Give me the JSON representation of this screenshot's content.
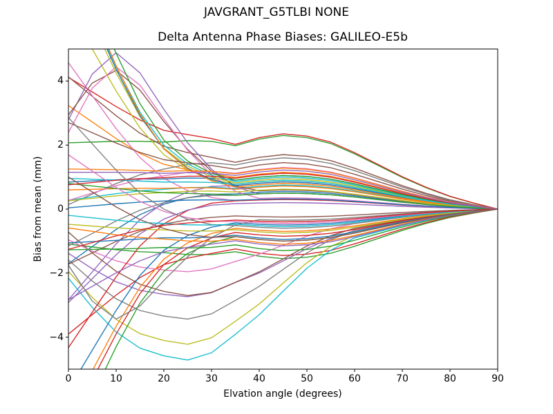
{
  "figure": {
    "suptitle": "JAVGRANT_G5TLBI NONE",
    "background": "#ffffff"
  },
  "chart_data": {
    "type": "line",
    "title": "JAVGRANT_G5TLBI NONE",
    "subtitle": "Delta Antenna Phase Biases: GALILEO-E5b",
    "xlabel": "Elvation angle (degrees)",
    "ylabel": "Bias from mean (mm)",
    "xlim": [
      0,
      90
    ],
    "ylim": [
      -5,
      5
    ],
    "x_ticks": [
      0,
      10,
      20,
      30,
      40,
      50,
      60,
      70,
      80,
      90
    ],
    "x_tick_labels": [
      "0",
      "10",
      "20",
      "30",
      "40",
      "50",
      "60",
      "70",
      "80",
      "90"
    ],
    "y_ticks": [
      -4,
      -2,
      0,
      2,
      4
    ],
    "y_tick_labels": [
      "−4",
      "−2",
      "0",
      "2",
      "4"
    ],
    "grid": false,
    "legend": "none",
    "axis_color": "#000000",
    "line_width": 1.4,
    "palette": [
      "#1f77b4",
      "#ff7f0e",
      "#2ca02c",
      "#d62728",
      "#9467bd",
      "#8c564b",
      "#e377c2",
      "#7f7f7f",
      "#bcbd22",
      "#17becf"
    ],
    "x": [
      0,
      5,
      10,
      15,
      20,
      25,
      30,
      35,
      40,
      45,
      50,
      55,
      60,
      65,
      70,
      75,
      80,
      85,
      90
    ],
    "model": "Each series (antenna/channel bias curve, mm) sampled at x degrees: y = A*funnel_h + S*left_divergence_d + V*dip25_v + P*bump10_p. All series converge to 0 mm at 90 deg; hump/dip near 45 deg; chaotic fan-out toward 0 deg.",
    "basis": {
      "funnel_h": [
        0.9,
        0.91,
        0.92,
        0.92,
        0.91,
        0.93,
        0.92,
        0.86,
        0.95,
        1.0,
        0.97,
        0.89,
        0.75,
        0.59,
        0.43,
        0.29,
        0.17,
        0.08,
        0.0
      ],
      "left_divergence_d": [
        1.0,
        0.76,
        0.52,
        0.31,
        0.16,
        0.07,
        0.02,
        0.0,
        0,
        0,
        0,
        0,
        0,
        0,
        0,
        0,
        0,
        0,
        0
      ],
      "dip25_v": [
        0.3,
        0.55,
        0.76,
        0.9,
        0.97,
        1.0,
        0.94,
        0.8,
        0.6,
        0.38,
        0.19,
        0.06,
        0.0,
        0,
        0,
        0,
        0,
        0,
        0
      ],
      "bump10_p": [
        0.3,
        0.75,
        1.0,
        0.9,
        0.65,
        0.4,
        0.2,
        0.07,
        0.0,
        0,
        0,
        0,
        0,
        0,
        0,
        0,
        0,
        0,
        0
      ]
    },
    "series": [
      {
        "c": 0,
        "A": 0.55,
        "S": -2.2
      },
      {
        "c": 1,
        "A": 1.15,
        "S": 2.2
      },
      {
        "c": 2,
        "A": 2.3,
        "S": 0
      },
      {
        "c": 3,
        "A": 2.35,
        "S": 2.0
      },
      {
        "c": 4,
        "A": 0.85,
        "S": -3.6
      },
      {
        "c": 5,
        "A": 1.7,
        "S": 2.6
      },
      {
        "c": 6,
        "A": 0.3,
        "S": 4.3
      },
      {
        "c": 7,
        "A": 1.6,
        "S": -1.3
      },
      {
        "c": 8,
        "A": 0.9,
        "S": 5.5
      },
      {
        "c": 9,
        "A": 0.75,
        "S": -0.4
      },
      {
        "c": 0,
        "A": 1.05,
        "S": -0.1
      },
      {
        "c": 1,
        "A": 0.72,
        "S": -0.05
      },
      {
        "c": 2,
        "A": -1.55,
        "S": 0.3
      },
      {
        "c": 3,
        "A": -1.45,
        "S": -2.6
      },
      {
        "c": 4,
        "A": -0.9,
        "S": 0,
        "V": -1.9
      },
      {
        "c": 5,
        "A": -0.8,
        "S": 0.6,
        "V": -2.0
      },
      {
        "c": 6,
        "A": -0.6,
        "S": 0,
        "V": -1.4
      },
      {
        "c": 7,
        "A": -0.9,
        "S": 0,
        "V": -2.6
      },
      {
        "c": 8,
        "A": -1.1,
        "S": 0,
        "V": -3.2
      },
      {
        "c": 9,
        "A": -1.2,
        "S": 0,
        "V": -3.6
      },
      {
        "c": 0,
        "A": -0.5,
        "S": -5.2
      },
      {
        "c": 1,
        "A": -0.7,
        "S": -5.8
      },
      {
        "c": 2,
        "A": -1.0,
        "S": -6.5
      },
      {
        "c": 3,
        "A": -0.85,
        "S": -6.0
      },
      {
        "c": 4,
        "A": 0.5,
        "S": 1.2,
        "P": 3.8
      },
      {
        "c": 5,
        "A": 0.6,
        "S": 1.5,
        "P": 3.0
      },
      {
        "c": 6,
        "A": 0.35,
        "S": 1.0,
        "P": 3.6
      },
      {
        "c": 7,
        "A": -0.35,
        "S": -0.6,
        "P": -2.8
      },
      {
        "c": 8,
        "A": 0.95,
        "S": 6.5
      },
      {
        "c": 9,
        "A": 1.0,
        "S": 6.8
      },
      {
        "c": 0,
        "A": 0.85,
        "S": 6.9
      },
      {
        "c": 1,
        "A": 0.8,
        "S": 7.2
      },
      {
        "c": 2,
        "A": 1.05,
        "S": 7.5
      },
      {
        "c": 3,
        "A": 0.3,
        "S": -4.6
      },
      {
        "c": 4,
        "A": 0.2,
        "S": -3.1
      },
      {
        "c": 5,
        "A": 1.45,
        "S": 1.4
      },
      {
        "c": 6,
        "A": 1.3,
        "S": -0.9
      },
      {
        "c": 7,
        "A": 0.5,
        "S": -1.6
      },
      {
        "c": 8,
        "A": 0.62,
        "S": -0.3
      },
      {
        "c": 9,
        "A": 0.9,
        "S": 0.15
      },
      {
        "c": 0,
        "A": 0.32,
        "S": -0.25
      },
      {
        "c": 1,
        "A": 1.28,
        "S": 0.1
      },
      {
        "c": 2,
        "A": 0.5,
        "S": 0.35
      },
      {
        "c": 3,
        "A": 1.12,
        "S": -0.25
      },
      {
        "c": 4,
        "A": 1.22,
        "S": 0.05
      },
      {
        "c": 5,
        "A": -0.25,
        "S": -1.5
      },
      {
        "c": 6,
        "A": -0.45,
        "S": 2.1
      },
      {
        "c": 7,
        "A": -0.6,
        "S": 3.4
      },
      {
        "c": 8,
        "A": -0.75,
        "S": 0.2
      },
      {
        "c": 9,
        "A": -0.55,
        "S": 0.3
      },
      {
        "c": 0,
        "A": -0.95,
        "S": -0.2
      },
      {
        "c": 1,
        "A": -1.1,
        "S": 0.4
      },
      {
        "c": 2,
        "A": -1.3,
        "S": -0.1
      },
      {
        "c": 3,
        "A": -0.4,
        "S": -0.9
      },
      {
        "c": 4,
        "A": -1.15,
        "S": -1.8
      },
      {
        "c": 5,
        "A": -1.0,
        "S": 1.9
      }
    ]
  }
}
